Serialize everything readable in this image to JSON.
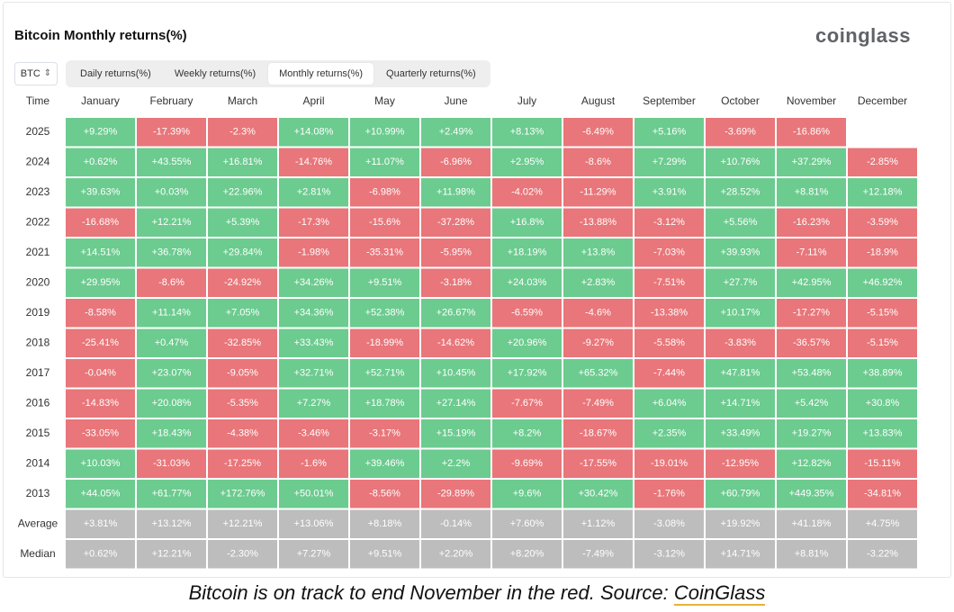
{
  "header": {
    "title": "Bitcoin Monthly returns(%)",
    "logo": "coinglass"
  },
  "controls": {
    "asset": "BTC",
    "asset_icon": "up-down-chevron-icon",
    "tabs": [
      "Daily returns(%)",
      "Weekly returns(%)",
      "Monthly returns(%)",
      "Quarterly returns(%)"
    ],
    "active_tab": "Monthly returns(%)"
  },
  "caption": {
    "text": "Bitcoin is on track to end November in the red. Source: ",
    "link_text": "CoinGlass"
  },
  "colors": {
    "positive": "#6ccb8f",
    "negative": "#e8767a",
    "neutral": "#bdbdbd",
    "header_text": "#333333",
    "cell_text": "#ffffff"
  },
  "chart_data": {
    "type": "heatmap",
    "title": "Bitcoin Monthly returns(%)",
    "corner_label": "Time",
    "columns": [
      "January",
      "February",
      "March",
      "April",
      "May",
      "June",
      "July",
      "August",
      "September",
      "October",
      "November",
      "December"
    ],
    "rows": [
      {
        "label": "2025",
        "values": [
          "+9.29%",
          "-17.39%",
          "-2.3%",
          "+14.08%",
          "+10.99%",
          "+2.49%",
          "+8.13%",
          "-6.49%",
          "+5.16%",
          "-3.69%",
          "-16.86%",
          ""
        ]
      },
      {
        "label": "2024",
        "values": [
          "+0.62%",
          "+43.55%",
          "+16.81%",
          "-14.76%",
          "+11.07%",
          "-6.96%",
          "+2.95%",
          "-8.6%",
          "+7.29%",
          "+10.76%",
          "+37.29%",
          "-2.85%"
        ]
      },
      {
        "label": "2023",
        "values": [
          "+39.63%",
          "+0.03%",
          "+22.96%",
          "+2.81%",
          "-6.98%",
          "+11.98%",
          "-4.02%",
          "-11.29%",
          "+3.91%",
          "+28.52%",
          "+8.81%",
          "+12.18%"
        ]
      },
      {
        "label": "2022",
        "values": [
          "-16.68%",
          "+12.21%",
          "+5.39%",
          "-17.3%",
          "-15.6%",
          "-37.28%",
          "+16.8%",
          "-13.88%",
          "-3.12%",
          "+5.56%",
          "-16.23%",
          "-3.59%"
        ]
      },
      {
        "label": "2021",
        "values": [
          "+14.51%",
          "+36.78%",
          "+29.84%",
          "-1.98%",
          "-35.31%",
          "-5.95%",
          "+18.19%",
          "+13.8%",
          "-7.03%",
          "+39.93%",
          "-7.11%",
          "-18.9%"
        ]
      },
      {
        "label": "2020",
        "values": [
          "+29.95%",
          "-8.6%",
          "-24.92%",
          "+34.26%",
          "+9.51%",
          "-3.18%",
          "+24.03%",
          "+2.83%",
          "-7.51%",
          "+27.7%",
          "+42.95%",
          "+46.92%"
        ]
      },
      {
        "label": "2019",
        "values": [
          "-8.58%",
          "+11.14%",
          "+7.05%",
          "+34.36%",
          "+52.38%",
          "+26.67%",
          "-6.59%",
          "-4.6%",
          "-13.38%",
          "+10.17%",
          "-17.27%",
          "-5.15%"
        ]
      },
      {
        "label": "2018",
        "values": [
          "-25.41%",
          "+0.47%",
          "-32.85%",
          "+33.43%",
          "-18.99%",
          "-14.62%",
          "+20.96%",
          "-9.27%",
          "-5.58%",
          "-3.83%",
          "-36.57%",
          "-5.15%"
        ]
      },
      {
        "label": "2017",
        "values": [
          "-0.04%",
          "+23.07%",
          "-9.05%",
          "+32.71%",
          "+52.71%",
          "+10.45%",
          "+17.92%",
          "+65.32%",
          "-7.44%",
          "+47.81%",
          "+53.48%",
          "+38.89%"
        ]
      },
      {
        "label": "2016",
        "values": [
          "-14.83%",
          "+20.08%",
          "-5.35%",
          "+7.27%",
          "+18.78%",
          "+27.14%",
          "-7.67%",
          "-7.49%",
          "+6.04%",
          "+14.71%",
          "+5.42%",
          "+30.8%"
        ]
      },
      {
        "label": "2015",
        "values": [
          "-33.05%",
          "+18.43%",
          "-4.38%",
          "-3.46%",
          "-3.17%",
          "+15.19%",
          "+8.2%",
          "-18.67%",
          "+2.35%",
          "+33.49%",
          "+19.27%",
          "+13.83%"
        ]
      },
      {
        "label": "2014",
        "values": [
          "+10.03%",
          "-31.03%",
          "-17.25%",
          "-1.6%",
          "+39.46%",
          "+2.2%",
          "-9.69%",
          "-17.55%",
          "-19.01%",
          "-12.95%",
          "+12.82%",
          "-15.11%"
        ]
      },
      {
        "label": "2013",
        "values": [
          "+44.05%",
          "+61.77%",
          "+172.76%",
          "+50.01%",
          "-8.56%",
          "-29.89%",
          "+9.6%",
          "+30.42%",
          "-1.76%",
          "+60.79%",
          "+449.35%",
          "-34.81%"
        ]
      }
    ],
    "summary_rows": [
      {
        "label": "Average",
        "values": [
          "+3.81%",
          "+13.12%",
          "+12.21%",
          "+13.06%",
          "+8.18%",
          "-0.14%",
          "+7.60%",
          "+1.12%",
          "-3.08%",
          "+19.92%",
          "+41.18%",
          "+4.75%"
        ]
      },
      {
        "label": "Median",
        "values": [
          "+0.62%",
          "+12.21%",
          "-2.30%",
          "+7.27%",
          "+9.51%",
          "+2.20%",
          "+8.20%",
          "-7.49%",
          "-3.12%",
          "+14.71%",
          "+8.81%",
          "-3.22%"
        ]
      }
    ]
  }
}
